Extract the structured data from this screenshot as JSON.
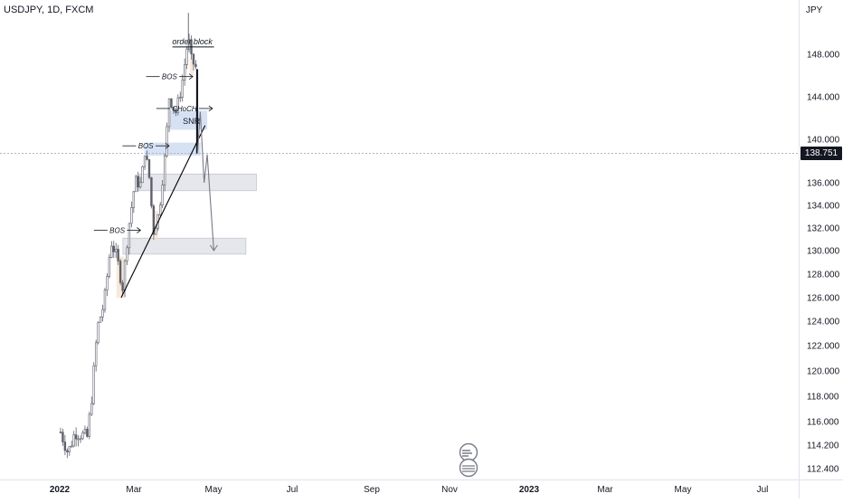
{
  "symbol": "USDJPY, 1D, FXCM",
  "currency": "JPY",
  "current_price": "138.751",
  "colors": {
    "candle": "#5d606b",
    "trendline": "#000000",
    "projection": "#787b86",
    "zone_blue": "#c8d8f0",
    "zone_gray": "#d1d4dc",
    "zone_orange": "#f6e0cc",
    "crosshair": "#b2b5be"
  },
  "chart_data": {
    "type": "candlestick",
    "title": "USDJPY, 1D, FXCM",
    "ylabel": "JPY",
    "y_ticks": [
      "148.000",
      "144.000",
      "140.000",
      "136.000",
      "134.000",
      "132.000",
      "130.000",
      "128.000",
      "126.000",
      "124.000",
      "122.000",
      "120.000",
      "118.000",
      "116.000",
      "114.200",
      "112.400"
    ],
    "x_ticks": [
      "2022",
      "Mar",
      "May",
      "Jul",
      "Sep",
      "Nov",
      "2023",
      "Mar",
      "May",
      "Jul"
    ],
    "close_path": [
      {
        "date": "2022-01-03",
        "close": 115.2
      },
      {
        "date": "2022-01-20",
        "close": 113.6
      },
      {
        "date": "2022-02-05",
        "close": 115.2
      },
      {
        "date": "2022-02-20",
        "close": 115.0
      },
      {
        "date": "2022-03-05",
        "close": 114.8
      },
      {
        "date": "2022-03-15",
        "close": 118.0
      },
      {
        "date": "2022-03-28",
        "close": 123.5
      },
      {
        "date": "2022-04-12",
        "close": 125.5
      },
      {
        "date": "2022-04-28",
        "close": 130.8
      },
      {
        "date": "2022-05-12",
        "close": 129.3
      },
      {
        "date": "2022-05-24",
        "close": 126.8
      },
      {
        "date": "2022-06-06",
        "close": 131.8
      },
      {
        "date": "2022-06-22",
        "close": 136.2
      },
      {
        "date": "2022-07-05",
        "close": 135.8
      },
      {
        "date": "2022-07-14",
        "close": 139.0
      },
      {
        "date": "2022-07-25",
        "close": 136.2
      },
      {
        "date": "2022-08-02",
        "close": 131.6
      },
      {
        "date": "2022-08-15",
        "close": 133.3
      },
      {
        "date": "2022-08-30",
        "close": 138.9
      },
      {
        "date": "2022-09-07",
        "close": 144.0
      },
      {
        "date": "2022-09-22",
        "close": 142.5
      },
      {
        "date": "2022-10-05",
        "close": 144.8
      },
      {
        "date": "2022-10-21",
        "close": 149.6
      },
      {
        "date": "2022-10-28",
        "close": 147.4
      },
      {
        "date": "2022-11-04",
        "close": 147.0
      },
      {
        "date": "2022-11-09",
        "close": 146.6
      },
      {
        "date": "2022-11-11",
        "close": 138.8
      }
    ],
    "annotations": [
      {
        "label": "BOS",
        "date": "2022-05-12",
        "price": 131.8
      },
      {
        "label": "BOS",
        "date": "2022-07-16",
        "price": 139.4
      },
      {
        "label": "BOS",
        "date": "2022-09-08",
        "price": 145.9
      },
      {
        "label": "CHoCH",
        "date": "2022-10-12",
        "price": 142.9
      },
      {
        "label": "order block",
        "date": "2022-10-30",
        "price": 149.2
      },
      {
        "label": "SNR",
        "date": "2022-10-28",
        "price": 141.7
      }
    ],
    "zones": [
      {
        "color": "blue",
        "x0": "2022-09-08",
        "x1": "2022-12-03",
        "y0": 140.9,
        "y1": 142.7
      },
      {
        "color": "blue",
        "x0": "2022-07-13",
        "x1": "2022-11-18",
        "y0": 138.5,
        "y1": 139.7
      },
      {
        "color": "gray",
        "x0": "2022-07-01",
        "x1": "2023-03-25",
        "y0": 135.3,
        "y1": 136.8
      },
      {
        "color": "gray",
        "x0": "2022-05-25",
        "x1": "2023-03-01",
        "y0": 129.7,
        "y1": 131.1
      },
      {
        "color": "orange",
        "x0": "2022-05-10",
        "x1": "2022-05-28",
        "y0": 126.0,
        "y1": 129.5
      },
      {
        "color": "orange",
        "x0": "2022-08-03",
        "x1": "2022-08-13",
        "y0": 130.8,
        "y1": 133.5
      },
      {
        "color": "orange",
        "x0": "2022-10-24",
        "x1": "2022-11-03",
        "y0": 146.0,
        "y1": 147.6
      }
    ],
    "trendline": [
      {
        "date": "2022-05-21",
        "price": 126.0
      },
      {
        "date": "2022-11-28",
        "price": 141.3
      }
    ],
    "projection": [
      {
        "date": "2022-11-11",
        "price": 138.7
      },
      {
        "date": "2022-11-17",
        "price": 142.6
      },
      {
        "date": "2022-11-26",
        "price": 136.0
      },
      {
        "date": "2022-12-03",
        "price": 138.6
      },
      {
        "date": "2022-12-18",
        "price": 130.0
      }
    ]
  }
}
